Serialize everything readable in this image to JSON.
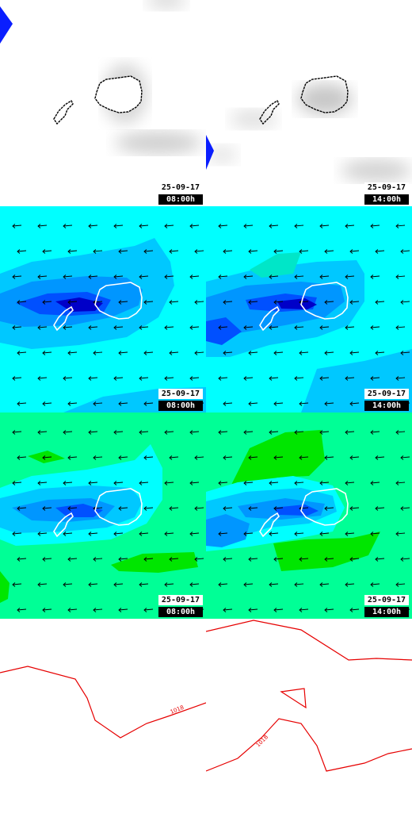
{
  "panels": [
    {
      "id": "cloud-0800",
      "layer": "cloud",
      "date": "25-09-17",
      "time": "08:00h"
    },
    {
      "id": "cloud-1400",
      "layer": "cloud",
      "date": "25-09-17",
      "time": "14:00h"
    },
    {
      "id": "wind-0800",
      "layer": "wind",
      "date": "25-09-17",
      "time": "08:00h"
    },
    {
      "id": "wind-1400",
      "layer": "wind",
      "date": "25-09-17",
      "time": "14:00h"
    },
    {
      "id": "wind2-0800",
      "layer": "wind-alt",
      "date": "25-09-17",
      "time": "08:00h"
    },
    {
      "id": "wind2-1400",
      "layer": "wind-alt",
      "date": "25-09-17",
      "time": "14:00h"
    },
    {
      "id": "pressure-0800",
      "layer": "pressure",
      "date": "",
      "time": ""
    },
    {
      "id": "pressure-1400",
      "layer": "pressure",
      "date": "",
      "time": ""
    }
  ],
  "isobars": {
    "left_label": "1018",
    "right_label": "1018"
  },
  "colors": {
    "cyan": "#00ffff",
    "light_blue": "#00c8ff",
    "mid_blue": "#0096ff",
    "dark_blue": "#0000c8",
    "green": "#00ff96",
    "bright_green": "#00e600",
    "isobar": "#e60000"
  }
}
